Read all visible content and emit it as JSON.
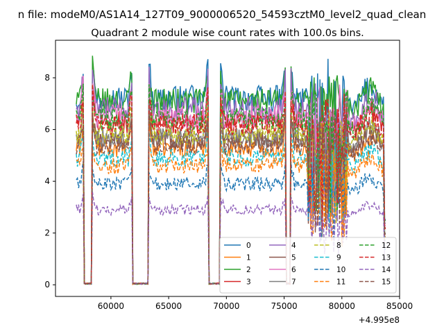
{
  "figure": {
    "suptitle": "n file: modeM0/AS1A14_127T09_9000006520_54593cztM0_level2_quad_clean",
    "title": "Quadrant 2 module wise count rates with 100.0s bins.",
    "offset_label": "+4.995e8"
  },
  "chart_data": {
    "type": "line",
    "title": "Quadrant 2 module wise count rates with 100.0s bins.",
    "xlabel": "",
    "ylabel": "",
    "x_offset": 499500000,
    "xlim": [
      55200,
      85000
    ],
    "ylim": [
      -0.45,
      9.45
    ],
    "x_ticks": [
      60000,
      65000,
      70000,
      75000,
      80000,
      85000
    ],
    "y_ticks": [
      0,
      2,
      4,
      6,
      8
    ],
    "grid": false,
    "legend": {
      "placement": "lower-right",
      "columns": 4
    },
    "x_start": 57000,
    "x_end": 83800,
    "gaps": [
      [
        57600,
        58400
      ],
      [
        61800,
        63300
      ],
      [
        68400,
        69500
      ],
      [
        75100,
        75600
      ]
    ],
    "series": [
      {
        "name": "0",
        "color": "#1f77b4",
        "dash": "solid",
        "level": 7.2
      },
      {
        "name": "1",
        "color": "#ff7f0e",
        "dash": "solid",
        "level": 5.3
      },
      {
        "name": "2",
        "color": "#2ca02c",
        "dash": "solid",
        "level": 7.1
      },
      {
        "name": "3",
        "color": "#d62728",
        "dash": "solid",
        "level": 6.3
      },
      {
        "name": "4",
        "color": "#9467bd",
        "dash": "solid",
        "level": 6.8
      },
      {
        "name": "5",
        "color": "#8c564b",
        "dash": "solid",
        "level": 5.6
      },
      {
        "name": "6",
        "color": "#e377c2",
        "dash": "solid",
        "level": 6.5
      },
      {
        "name": "7",
        "color": "#7f7f7f",
        "dash": "solid",
        "level": 5.7
      },
      {
        "name": "8",
        "color": "#bcbd22",
        "dash": "dashed",
        "level": 5.8
      },
      {
        "name": "9",
        "color": "#17becf",
        "dash": "dashed",
        "level": 4.9
      },
      {
        "name": "10",
        "color": "#1f77b4",
        "dash": "dashed",
        "level": 3.9
      },
      {
        "name": "11",
        "color": "#ff7f0e",
        "dash": "dashed",
        "level": 4.6
      },
      {
        "name": "12",
        "color": "#2ca02c",
        "dash": "dashed",
        "level": 6.4
      },
      {
        "name": "13",
        "color": "#d62728",
        "dash": "dashed",
        "level": 6.2
      },
      {
        "name": "14",
        "color": "#9467bd",
        "dash": "dashed",
        "level": 2.9
      },
      {
        "name": "15",
        "color": "#8c564b",
        "dash": "dashed",
        "level": 5.4
      }
    ]
  }
}
